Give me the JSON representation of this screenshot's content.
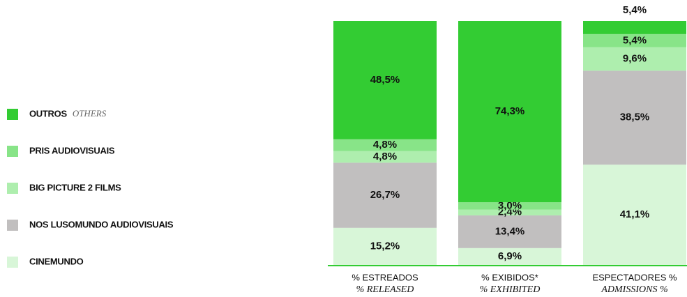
{
  "chart_data": {
    "type": "stacked_bar",
    "categories": [
      "% ESTREADOS",
      "% EXIBIDOS*",
      "ESPECTADORES %"
    ],
    "categories_en": [
      "% RELEASED",
      "% EXHIBITED",
      "ADMISSIONS %"
    ],
    "ylim": [
      0,
      100
    ],
    "series": [
      {
        "name": "CINEMUNDO",
        "color": "#d8f6d8",
        "values": [
          15.2,
          6.9,
          41.1
        ],
        "value_labels": [
          "15,2%",
          "6,9%",
          "41,1%"
        ]
      },
      {
        "name": "NOS LUSOMUNDO AUDIOVISUAIS",
        "color": "#c1bfbf",
        "values": [
          26.7,
          13.4,
          38.5
        ],
        "value_labels": [
          "26,7%",
          "13,4%",
          "38,5%"
        ]
      },
      {
        "name": "BIG PICTURE 2 FILMS",
        "color": "#aeeeae",
        "values": [
          4.8,
          2.4,
          9.6
        ],
        "value_labels": [
          "4,8%",
          "2,4%",
          "9,6%"
        ]
      },
      {
        "name": "PRIS AUDIOVISUAIS",
        "color": "#88e488",
        "values": [
          4.8,
          3.0,
          5.4
        ],
        "value_labels": [
          "4,8%",
          "3,0%",
          "5,4%"
        ]
      },
      {
        "name": "OUTROS",
        "name_en": "OTHERS",
        "color": "#33cc33",
        "values": [
          48.5,
          74.3,
          5.4
        ],
        "value_labels": [
          "48,5%",
          "74,3%",
          "5,4%"
        ]
      }
    ]
  }
}
